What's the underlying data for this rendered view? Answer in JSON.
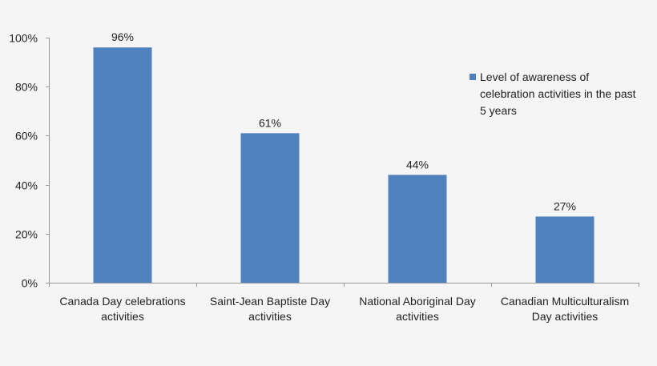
{
  "chart_data": {
    "type": "bar",
    "title": "",
    "xlabel": "",
    "ylabel": "",
    "ylim": [
      0,
      100
    ],
    "yticks": [
      "0%",
      "20%",
      "40%",
      "60%",
      "80%",
      "100%"
    ],
    "ytick_values": [
      0,
      20,
      40,
      60,
      80,
      100
    ],
    "categories": [
      [
        "Canada Day celebrations",
        "activities"
      ],
      [
        "Saint-Jean Baptiste Day",
        "activities"
      ],
      [
        "National Aboriginal Day",
        "activities"
      ],
      [
        "Canadian Multiculturalism",
        "Day activities"
      ]
    ],
    "series": [
      {
        "name": "Level of awareness of celebration activities in the past 5 years",
        "name_lines": [
          "Level of awareness of",
          "celebration activities in the past",
          "5 years"
        ],
        "values": [
          96,
          61,
          44,
          27
        ],
        "labels": [
          "96%",
          "61%",
          "44%",
          "27%"
        ],
        "color": "#4f81bd"
      }
    ],
    "legend": "right",
    "grid": false
  }
}
